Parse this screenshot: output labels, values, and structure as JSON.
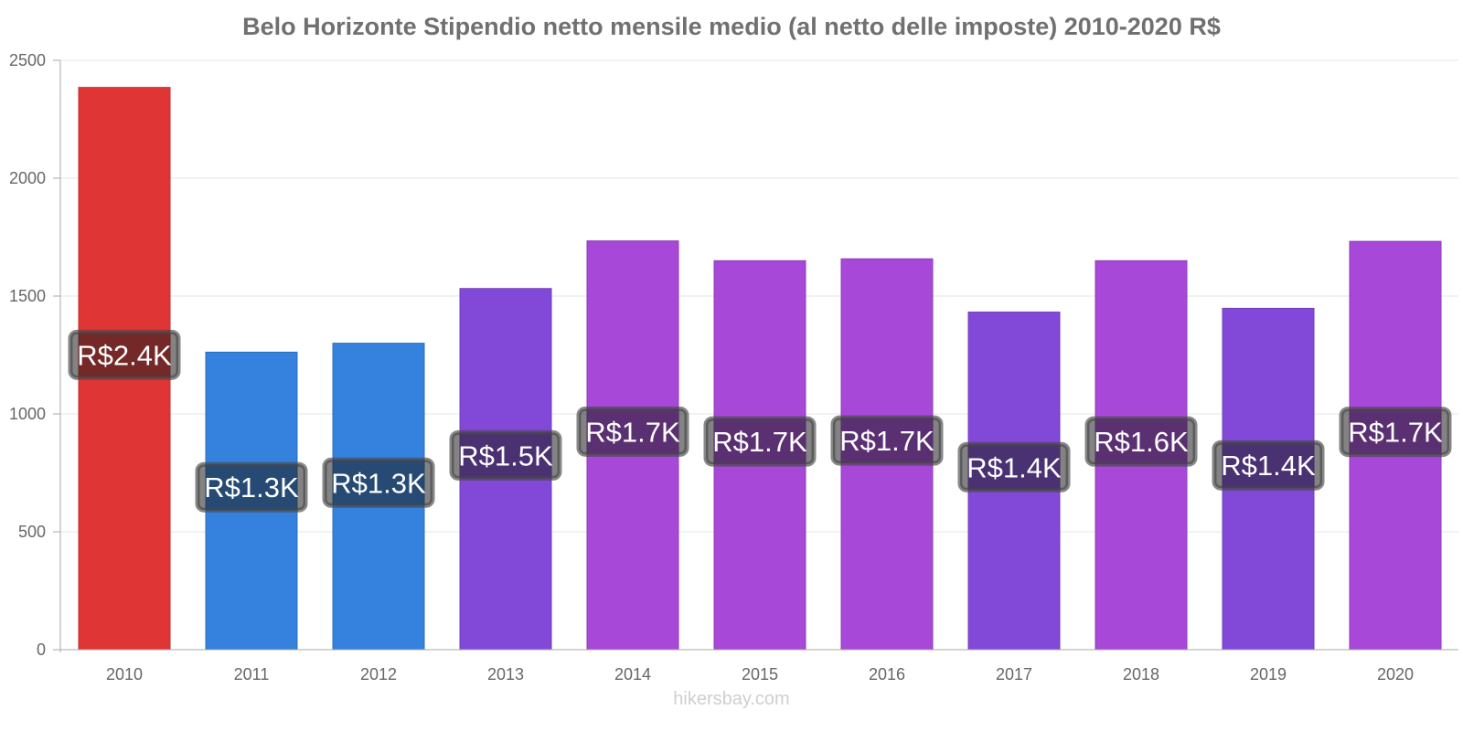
{
  "chart_data": {
    "type": "bar",
    "title": "Belo Horizonte Stipendio netto mensile medio (al netto delle imposte) 2010-2020 R$",
    "xlabel": "",
    "ylabel": "",
    "ylim": [
      0,
      2500
    ],
    "yticks": [
      0,
      500,
      1000,
      1500,
      2000,
      2500
    ],
    "grid": true,
    "categories": [
      "2010",
      "2011",
      "2012",
      "2013",
      "2014",
      "2015",
      "2016",
      "2017",
      "2018",
      "2019",
      "2020"
    ],
    "values": [
      2385,
      1262,
      1300,
      1532,
      1734,
      1650,
      1658,
      1432,
      1650,
      1448,
      1732
    ],
    "labels": [
      "R$2.4K",
      "R$1.3K",
      "R$1.3K",
      "R$1.5K",
      "R$1.7K",
      "R$1.7K",
      "R$1.7K",
      "R$1.4K",
      "R$1.6K",
      "R$1.4K",
      "R$1.7K"
    ],
    "colors": [
      "#e03535",
      "#3482dd",
      "#3482dd",
      "#8249d9",
      "#a748d9",
      "#a748d9",
      "#a748d9",
      "#8249d9",
      "#a748d9",
      "#8249d9",
      "#a748d9"
    ]
  },
  "watermark": "hikersbay.com"
}
